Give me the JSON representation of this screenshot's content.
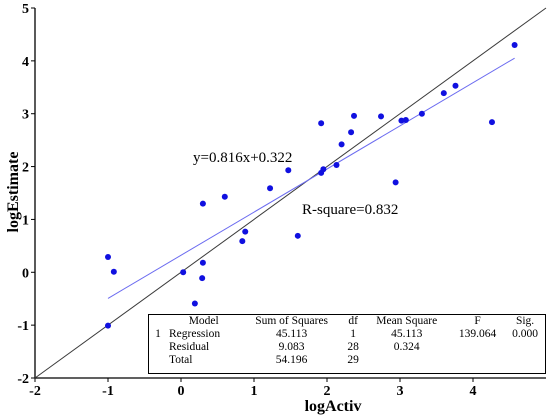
{
  "chart_data": {
    "type": "scatter",
    "title": "",
    "xlabel": "logActiv",
    "ylabel": "logEstimate",
    "xlim": [
      -2,
      5
    ],
    "ylim": [
      -2,
      5
    ],
    "xticks": [
      "-2",
      "-1",
      "0",
      "1",
      "2",
      "3",
      "4"
    ],
    "yticks": [
      "-2",
      "-1",
      "0",
      "1",
      "2",
      "3",
      "4",
      "5"
    ],
    "grid": false,
    "points": [
      {
        "x": -1.0,
        "y": 0.29
      },
      {
        "x": -0.92,
        "y": 0.01
      },
      {
        "x": -1.0,
        "y": -1.01
      },
      {
        "x": 0.03,
        "y": 0.0
      },
      {
        "x": 0.19,
        "y": -0.59
      },
      {
        "x": 0.29,
        "y": -0.11
      },
      {
        "x": 0.3,
        "y": 0.18
      },
      {
        "x": 0.3,
        "y": 1.3
      },
      {
        "x": 0.6,
        "y": 1.43
      },
      {
        "x": 0.84,
        "y": 0.59
      },
      {
        "x": 0.88,
        "y": 0.77
      },
      {
        "x": 1.22,
        "y": 1.59
      },
      {
        "x": 1.47,
        "y": 1.93
      },
      {
        "x": 1.6,
        "y": 0.69
      },
      {
        "x": 1.92,
        "y": 1.88
      },
      {
        "x": 1.95,
        "y": 1.95
      },
      {
        "x": 1.92,
        "y": 2.82
      },
      {
        "x": 2.13,
        "y": 2.03
      },
      {
        "x": 2.2,
        "y": 2.42
      },
      {
        "x": 2.33,
        "y": 2.65
      },
      {
        "x": 2.37,
        "y": 2.96
      },
      {
        "x": 2.74,
        "y": 2.95
      },
      {
        "x": 2.94,
        "y": 1.7
      },
      {
        "x": 3.02,
        "y": 2.87
      },
      {
        "x": 3.08,
        "y": 2.88
      },
      {
        "x": 3.3,
        "y": 3.0
      },
      {
        "x": 3.6,
        "y": 3.39
      },
      {
        "x": 3.76,
        "y": 3.53
      },
      {
        "x": 4.26,
        "y": 2.84
      },
      {
        "x": 4.57,
        "y": 4.3
      }
    ],
    "fit_line": {
      "slope": 0.816,
      "intercept": 0.322,
      "x_range": [
        -1.0,
        4.57
      ]
    },
    "reference_line": {
      "slope": 1,
      "intercept": 0
    },
    "annotations": {
      "equation": "y=0.816x+0.322",
      "r_square": "R-square=0.832"
    },
    "colors": {
      "points": "#1010e0",
      "fit_line": "#6b6bf0",
      "reference_line": "#3a3a3a",
      "axis": "#000000"
    }
  },
  "anova": {
    "headers": [
      "Model",
      "Sum of Squares",
      "df",
      "Mean Square",
      "F",
      "Sig."
    ],
    "rows": [
      {
        "model_no": "1",
        "label": "Regression",
        "ss": "45.113",
        "df": "1",
        "ms": "45.113",
        "f": "139.064",
        "sig": "0.000"
      },
      {
        "model_no": "",
        "label": "Residual",
        "ss": "9.083",
        "df": "28",
        "ms": "0.324",
        "f": "",
        "sig": ""
      },
      {
        "model_no": "",
        "label": "Total",
        "ss": "54.196",
        "df": "29",
        "ms": "",
        "f": "",
        "sig": ""
      }
    ]
  }
}
